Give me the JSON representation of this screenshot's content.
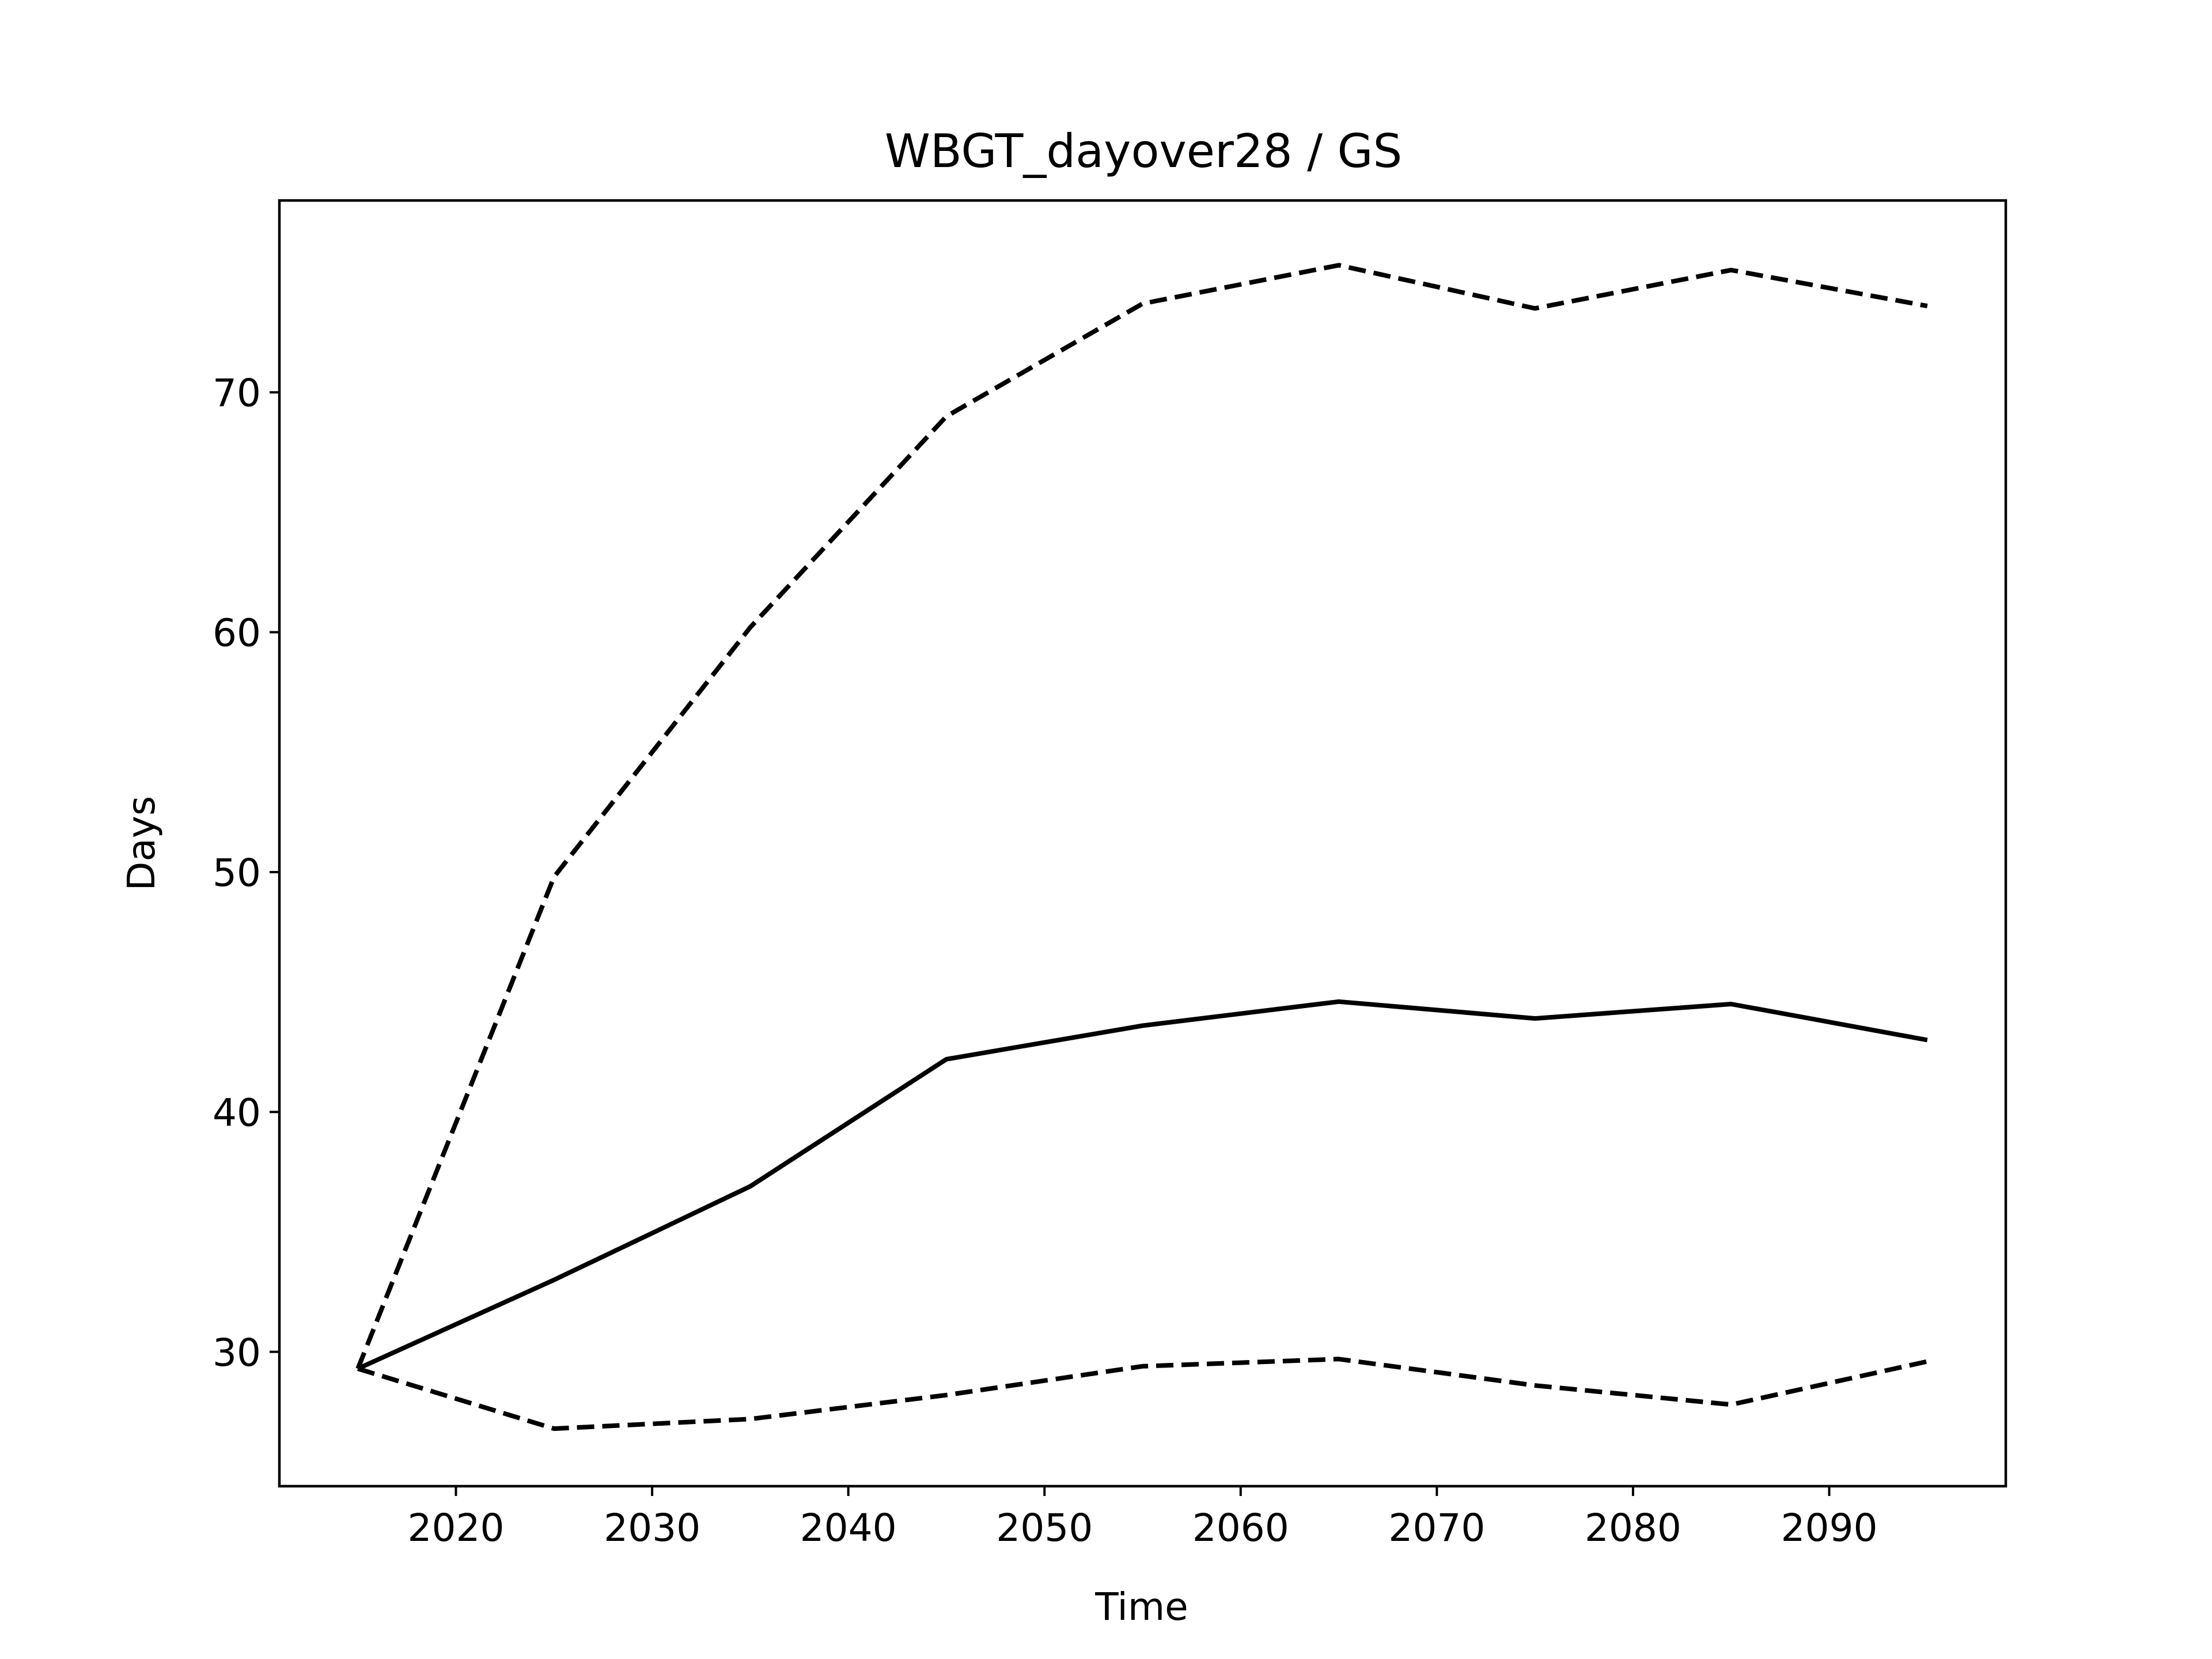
{
  "chart_data": {
    "type": "line",
    "title": "WBGT_dayover28 / GS",
    "xlabel": "Time",
    "ylabel": "Days",
    "x": [
      2015,
      2025,
      2035,
      2045,
      2055,
      2065,
      2075,
      2085,
      2095
    ],
    "xlim": [
      2011,
      2099
    ],
    "ylim": [
      24.4,
      78.0
    ],
    "xticks": [
      2020,
      2030,
      2040,
      2050,
      2060,
      2070,
      2080,
      2090
    ],
    "yticks": [
      30,
      40,
      50,
      60,
      70
    ],
    "grid": false,
    "series": [
      {
        "style": "dashed",
        "color": "#000000",
        "values": [
          29.3,
          49.8,
          60.2,
          69.0,
          73.7,
          75.3,
          73.5,
          75.1,
          73.6
        ]
      },
      {
        "style": "solid",
        "color": "#000000",
        "values": [
          29.3,
          33.0,
          36.9,
          42.2,
          43.6,
          44.6,
          43.9,
          44.5,
          43.0
        ]
      },
      {
        "style": "dashed",
        "color": "#000000",
        "values": [
          29.3,
          26.8,
          27.2,
          28.2,
          29.4,
          29.7,
          28.6,
          27.8,
          29.6
        ]
      }
    ]
  }
}
